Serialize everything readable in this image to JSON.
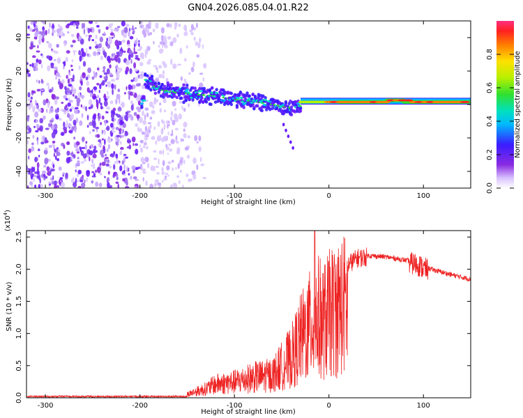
{
  "title": "GN04.2026.085.04.01.R22",
  "colors": {
    "snr_line": "#ee2222",
    "axis": "#000000",
    "background": "#ffffff"
  },
  "chart_data": [
    {
      "type": "heatmap",
      "name": "spectrogram",
      "xlabel": "Height of straight line (km)",
      "ylabel": "Frequency (Hz)",
      "xlim": [
        -320,
        150
      ],
      "ylim": [
        -50,
        50
      ],
      "x_ticks": [
        -300,
        -200,
        -100,
        0,
        100
      ],
      "y_ticks": [
        -40,
        -20,
        0,
        20,
        40
      ],
      "colorbar": {
        "label": "Normalized spectral amplitude",
        "range": [
          0,
          1
        ],
        "ticks": [
          "0.0",
          "0.2",
          "0.4",
          "0.6",
          "0.8"
        ]
      },
      "signal_track": [
        {
          "x": -195,
          "f": 15
        },
        {
          "x": -180,
          "f": 9
        },
        {
          "x": -160,
          "f": 7
        },
        {
          "x": -140,
          "f": 6
        },
        {
          "x": -120,
          "f": 5
        },
        {
          "x": -100,
          "f": 3
        },
        {
          "x": -80,
          "f": 2
        },
        {
          "x": -60,
          "f": 0
        },
        {
          "x": -40,
          "f": -2
        },
        {
          "x": -20,
          "f": 0
        },
        {
          "x": 0,
          "f": 1.5
        },
        {
          "x": 30,
          "f": 1.5
        },
        {
          "x": 60,
          "f": 2.5
        },
        {
          "x": 100,
          "f": 2
        },
        {
          "x": 150,
          "f": 2
        }
      ]
    },
    {
      "type": "line",
      "name": "snr",
      "xlabel": "Height of straight line (km)",
      "ylabel": "SNR (10 * v/v)",
      "y_multiplier": "(x10",
      "y_multiplier_exp": "4",
      "y_multiplier_close": ")",
      "xlim": [
        -320,
        150
      ],
      "ylim": [
        0,
        2.6
      ],
      "x_ticks": [
        -300,
        -200,
        -100,
        0,
        100
      ],
      "y_ticks": [
        "0.0",
        "0.5",
        "1.0",
        "1.5",
        "2.0",
        "2.5"
      ],
      "series": [
        {
          "name": "SNR",
          "x": [
            -320,
            -250,
            -200,
            -170,
            -150,
            -130,
            -120,
            -100,
            -80,
            -60,
            -50,
            -40,
            -30,
            -20,
            -12,
            -5,
            0,
            10,
            20,
            30,
            40,
            60,
            80,
            90,
            95,
            100,
            110,
            130,
            150
          ],
          "y": [
            0.02,
            0.02,
            0.03,
            0.05,
            0.08,
            0.2,
            0.3,
            0.35,
            0.45,
            0.5,
            0.7,
            0.9,
            1.3,
            1.6,
            1.8,
            1.7,
            1.85,
            2.0,
            2.1,
            2.2,
            2.22,
            2.2,
            2.15,
            2.12,
            2.1,
            2.05,
            2.0,
            1.92,
            1.85
          ]
        }
      ]
    }
  ]
}
